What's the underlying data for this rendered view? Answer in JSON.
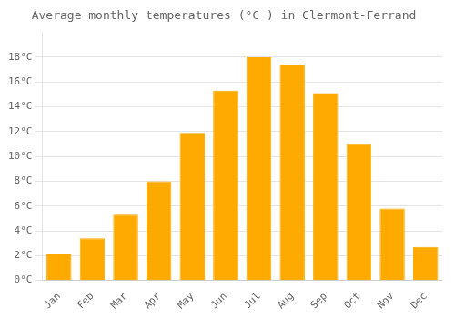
{
  "chart_data": {
    "type": "bar",
    "title": "Average monthly temperatures (°C ) in Clermont-Ferrand",
    "categories": [
      "Jan",
      "Feb",
      "Mar",
      "Apr",
      "May",
      "Jun",
      "Jul",
      "Aug",
      "Sep",
      "Oct",
      "Nov",
      "Dec"
    ],
    "values": [
      2.1,
      3.4,
      5.3,
      8.0,
      11.9,
      15.3,
      18.0,
      17.4,
      15.1,
      11.0,
      5.8,
      2.7
    ],
    "color": "#FFAA00",
    "ylim": [
      0,
      20
    ],
    "yticks": [
      {
        "value": 0,
        "label": "0°C"
      },
      {
        "value": 2,
        "label": "2°C"
      },
      {
        "value": 4,
        "label": "4°C"
      },
      {
        "value": 6,
        "label": "6°C"
      },
      {
        "value": 8,
        "label": "8°C"
      },
      {
        "value": 10,
        "label": "10°C"
      },
      {
        "value": 12,
        "label": "12°C"
      },
      {
        "value": 14,
        "label": "14°C"
      },
      {
        "value": 16,
        "label": "16°C"
      },
      {
        "value": 18,
        "label": "18°C"
      }
    ],
    "grid": true
  }
}
